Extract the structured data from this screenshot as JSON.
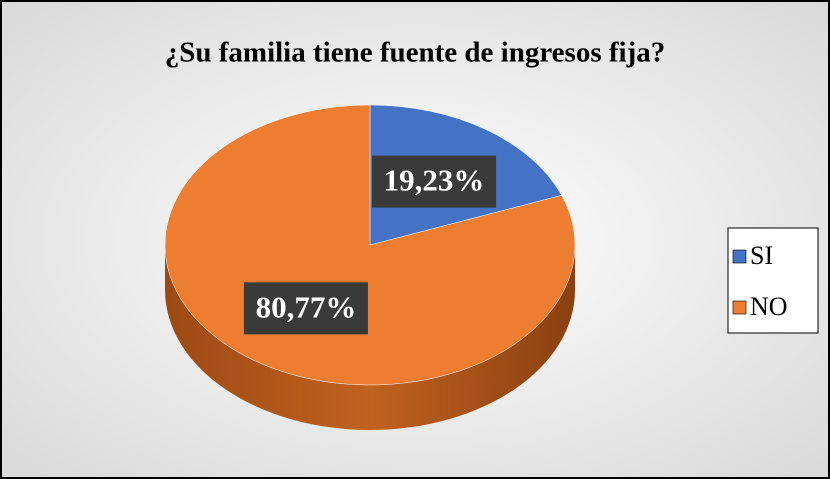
{
  "chart_data": {
    "type": "pie",
    "title": "¿Su familia tiene fuente de ingresos fija?",
    "categories": [
      "SI",
      "NO"
    ],
    "values": [
      19.23,
      80.77
    ],
    "value_labels": [
      "19,23%",
      "80,77%"
    ],
    "colors": [
      "#4472c4",
      "#ed7d31"
    ],
    "legend": "right"
  }
}
